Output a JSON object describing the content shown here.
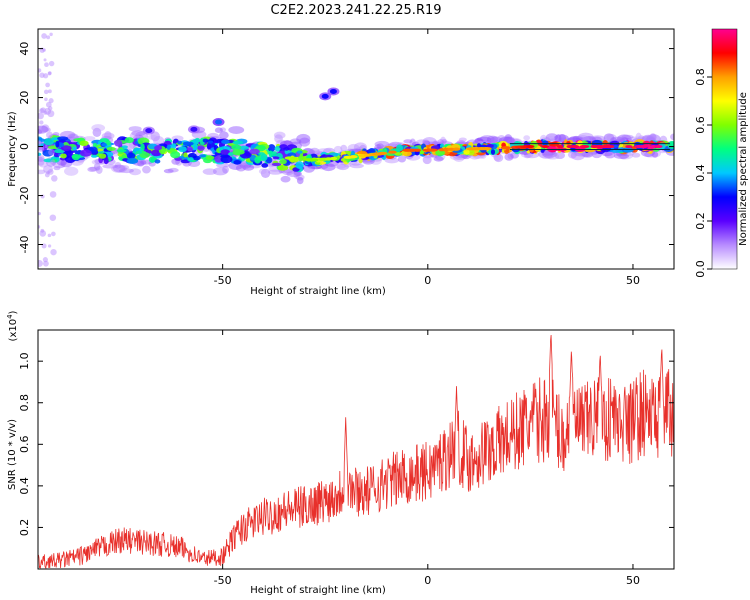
{
  "title": "C2E2.2023.241.22.25.R19",
  "chart_data": [
    {
      "type": "heatmap",
      "xlabel": "Height of straight line (km)",
      "ylabel": "Frequency (Hz)",
      "xlim": [
        -95,
        60
      ],
      "ylim": [
        -50,
        48
      ],
      "xticks": [
        -50,
        0,
        50
      ],
      "yticks": [
        -40,
        -20,
        0,
        20,
        40
      ],
      "colorbar": {
        "label": "Normalized spectral amplitude",
        "range": [
          0,
          1
        ],
        "ticks": [
          "0.0",
          "0.2",
          "0.4",
          "0.6",
          "0.8"
        ],
        "colors": [
          "#ffffff",
          "#b88cff",
          "#5a00ff",
          "#0000ff",
          "#00c8ff",
          "#00ff80",
          "#80ff00",
          "#ffff00",
          "#ffa000",
          "#ff0000",
          "#ff0090"
        ]
      },
      "ridge": [
        {
          "x": -95,
          "y": -1.5,
          "a": 0.35
        },
        {
          "x": -85,
          "y": -1.0,
          "a": 0.45
        },
        {
          "x": -75,
          "y": -1.5,
          "a": 0.45
        },
        {
          "x": -65,
          "y": -2.0,
          "a": 0.45
        },
        {
          "x": -55,
          "y": -2.0,
          "a": 0.4
        },
        {
          "x": -45,
          "y": -2.0,
          "a": 0.4
        },
        {
          "x": -35,
          "y": -4.5,
          "a": 0.55
        },
        {
          "x": -28,
          "y": -5.5,
          "a": 0.5
        },
        {
          "x": -20,
          "y": -4.5,
          "a": 0.6
        },
        {
          "x": -12,
          "y": -3.0,
          "a": 0.7
        },
        {
          "x": -5,
          "y": -1.5,
          "a": 0.75
        },
        {
          "x": 0,
          "y": -1.5,
          "a": 0.75
        },
        {
          "x": 8,
          "y": -1.0,
          "a": 0.7
        },
        {
          "x": 15,
          "y": -0.8,
          "a": 0.7
        },
        {
          "x": 25,
          "y": 0.0,
          "a": 0.8
        },
        {
          "x": 35,
          "y": 0.0,
          "a": 0.85
        },
        {
          "x": 45,
          "y": 0.0,
          "a": 0.85
        },
        {
          "x": 55,
          "y": 0.0,
          "a": 0.9
        },
        {
          "x": 59,
          "y": 0.0,
          "a": 0.85
        }
      ],
      "features": [
        {
          "x": -51,
          "y": 10.0,
          "a": 0.35
        },
        {
          "x": -25,
          "y": 20.5,
          "a": 0.3
        },
        {
          "x": -23,
          "y": 22.5,
          "a": 0.3
        },
        {
          "x": -57,
          "y": 7.0,
          "a": 0.25
        },
        {
          "x": -68,
          "y": 6.5,
          "a": 0.25
        }
      ]
    },
    {
      "type": "line",
      "xlabel": "Height of straight line (km)",
      "ylabel": "SNR (10 * v/v)",
      "yscale_label": "(x10",
      "yscale_exponent": "4",
      "yscale_close": ")",
      "xlim": [
        -95,
        60
      ],
      "ylim": [
        0,
        1.15
      ],
      "xticks": [
        -50,
        0,
        50
      ],
      "yticks": [
        0.2,
        0.4,
        0.6,
        0.8,
        1.0
      ],
      "color": "#e8302b",
      "x": [
        -95,
        -90,
        -85,
        -80,
        -75,
        -70,
        -65,
        -60,
        -55,
        -50,
        -47,
        -45,
        -40,
        -35,
        -30,
        -25,
        -22,
        -20,
        -18,
        -15,
        -10,
        -5,
        0,
        5,
        7,
        10,
        15,
        20,
        25,
        28,
        30,
        33,
        35,
        38,
        40,
        43,
        45,
        48,
        50,
        53,
        55,
        58,
        60
      ],
      "y": [
        0.03,
        0.04,
        0.06,
        0.1,
        0.14,
        0.13,
        0.12,
        0.1,
        0.05,
        0.06,
        0.16,
        0.2,
        0.25,
        0.28,
        0.3,
        0.33,
        0.36,
        0.4,
        0.38,
        0.37,
        0.42,
        0.45,
        0.47,
        0.55,
        0.6,
        0.52,
        0.58,
        0.64,
        0.7,
        0.72,
        0.75,
        0.62,
        0.72,
        0.68,
        0.73,
        0.7,
        0.75,
        0.65,
        0.72,
        0.76,
        0.72,
        0.78,
        0.7
      ],
      "spikes": [
        {
          "x": -20,
          "y": 0.73
        },
        {
          "x": 30,
          "y": 1.15
        },
        {
          "x": 35,
          "y": 1.07
        },
        {
          "x": 42,
          "y": 1.05
        },
        {
          "x": 57,
          "y": 1.08
        },
        {
          "x": 7,
          "y": 0.88
        },
        {
          "x": 48,
          "y": 0.9
        }
      ]
    }
  ]
}
